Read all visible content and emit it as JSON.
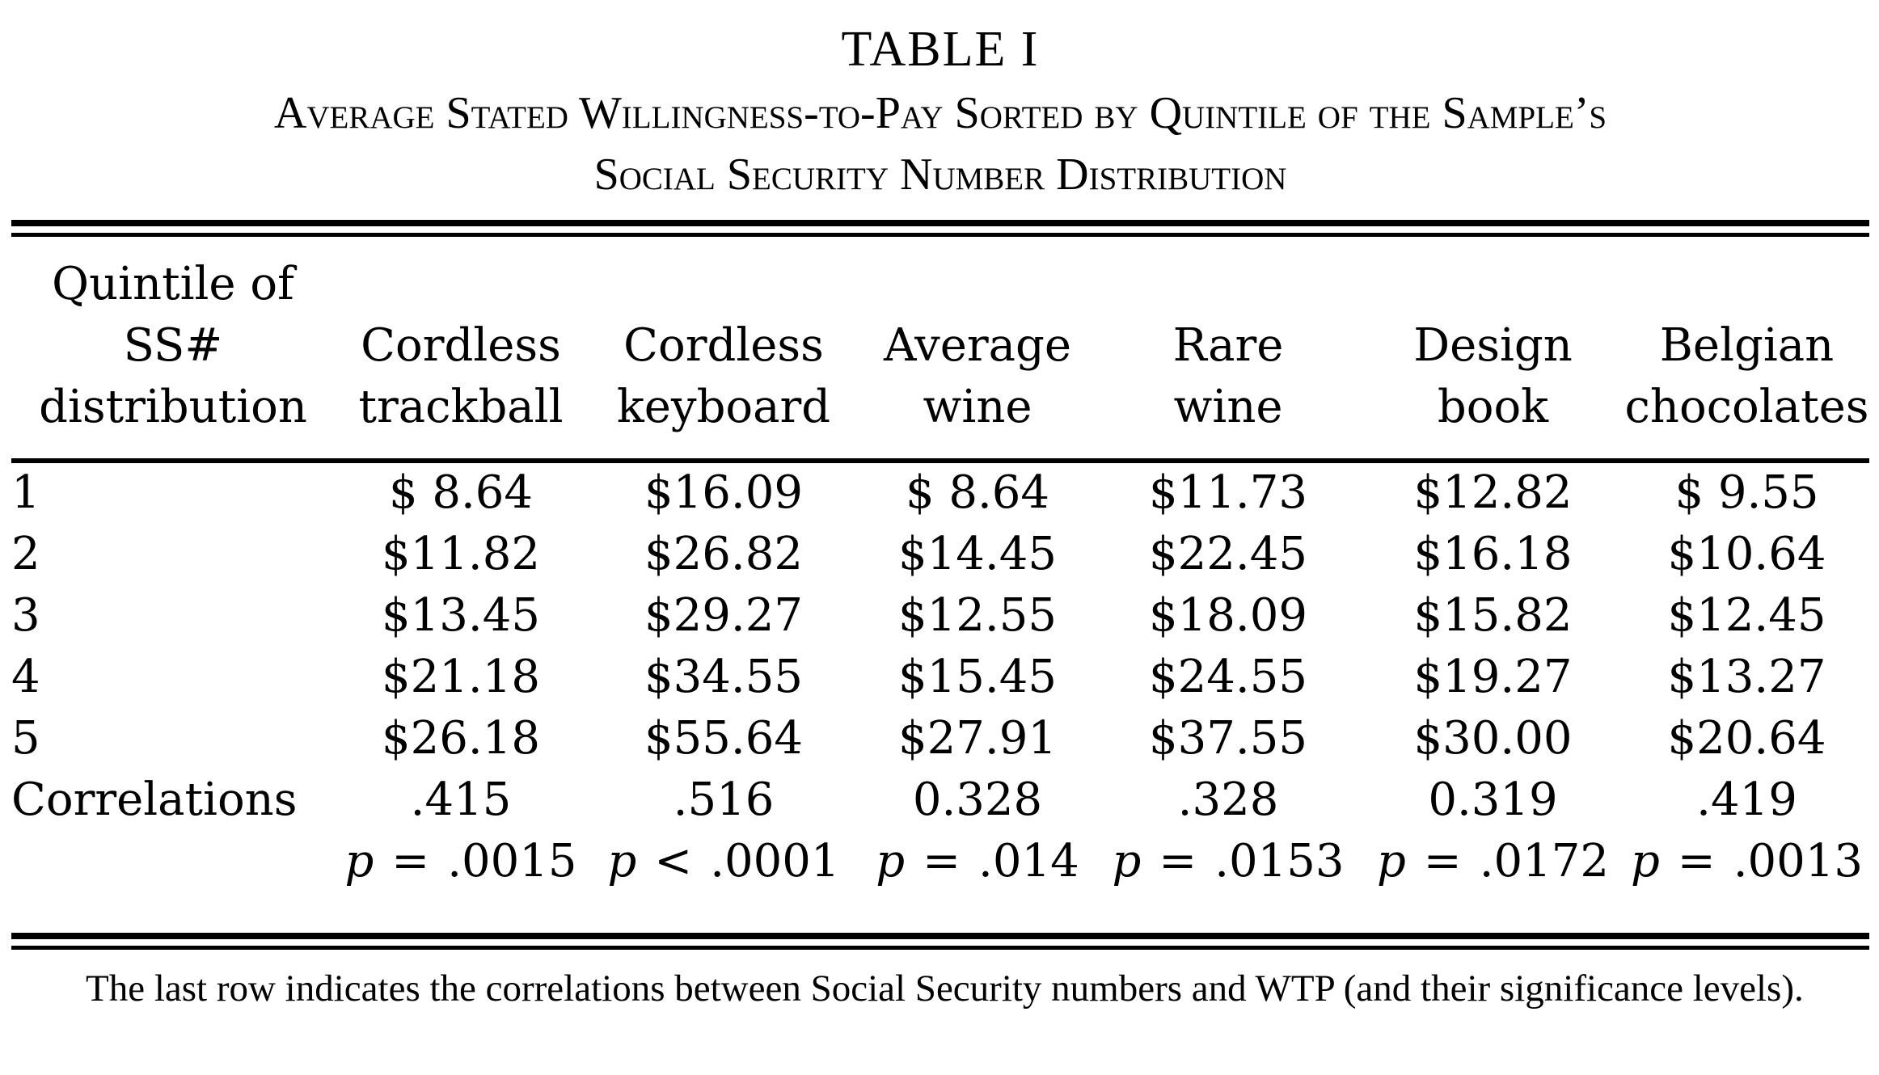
{
  "table": {
    "title": "TABLE I",
    "subtitle_line1": "Average Stated Willingness-to-Pay Sorted by Quintile of the Sample’s",
    "subtitle_line2": "Social Security Number Distribution",
    "headers": [
      [
        "Quintile of",
        "SS#",
        "distribution"
      ],
      [
        "Cordless",
        "trackball"
      ],
      [
        "Cordless",
        "keyboard"
      ],
      [
        "Average",
        "wine"
      ],
      [
        "Rare",
        "wine"
      ],
      [
        "Design",
        "book"
      ],
      [
        "Belgian",
        "chocolates"
      ]
    ],
    "rows": [
      {
        "label": "1",
        "values": [
          "$ 8.64",
          "$16.09",
          "$ 8.64",
          "$11.73",
          "$12.82",
          "$ 9.55"
        ]
      },
      {
        "label": "2",
        "values": [
          "$11.82",
          "$26.82",
          "$14.45",
          "$22.45",
          "$16.18",
          "$10.64"
        ]
      },
      {
        "label": "3",
        "values": [
          "$13.45",
          "$29.27",
          "$12.55",
          "$18.09",
          "$15.82",
          "$12.45"
        ]
      },
      {
        "label": "4",
        "values": [
          "$21.18",
          "$34.55",
          "$15.45",
          "$24.55",
          "$19.27",
          "$13.27"
        ]
      },
      {
        "label": "5",
        "values": [
          "$26.18",
          "$55.64",
          "$27.91",
          "$37.55",
          "$30.00",
          "$20.64"
        ]
      },
      {
        "label": "Correlations",
        "values": [
          ".415",
          ".516",
          "0.328",
          ".328",
          "0.319",
          ".419"
        ]
      }
    ],
    "p_values": [
      {
        "var": "p",
        "op": "=",
        "value": ".0015"
      },
      {
        "var": "p",
        "op": "<",
        "value": ".0001"
      },
      {
        "var": "p",
        "op": "=",
        "value": ".014"
      },
      {
        "var": "p",
        "op": "=",
        "value": ".0153"
      },
      {
        "var": "p",
        "op": "=",
        "value": ".0172"
      },
      {
        "var": "p",
        "op": "=",
        "value": ".0013"
      }
    ],
    "note": "The last row indicates the correlations between Social Security numbers and WTP (and their significance levels)."
  }
}
